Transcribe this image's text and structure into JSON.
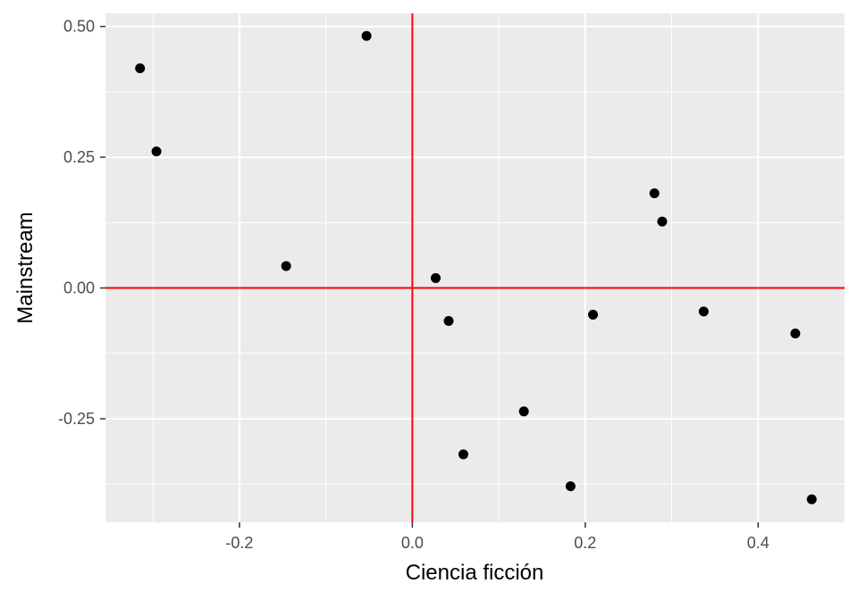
{
  "chart_data": {
    "type": "scatter",
    "title": "",
    "xlabel": "Ciencia ficción",
    "ylabel": "Mainstream",
    "xlim": [
      -0.355,
      0.5
    ],
    "ylim": [
      -0.448,
      0.525
    ],
    "x_ticks": [
      -0.2,
      0.0,
      0.2,
      0.4
    ],
    "x_tick_labels": [
      "-0.2",
      "0.0",
      "0.2",
      "0.4"
    ],
    "y_ticks": [
      -0.25,
      0.0,
      0.25,
      0.5
    ],
    "y_tick_labels": [
      "-0.25",
      "0.00",
      "0.25",
      "0.50"
    ],
    "x_minor": [
      -0.3,
      -0.1,
      0.1,
      0.3
    ],
    "y_minor": [
      -0.375,
      -0.125,
      0.125,
      0.375
    ],
    "grid": true,
    "reference_lines": {
      "x": 0,
      "y": 0,
      "color": "#ff0000"
    },
    "colors": {
      "panel": "#ebebeb",
      "grid": "#ffffff",
      "point": "#000000",
      "reference": "#ff0000"
    },
    "points": [
      {
        "x": -0.315,
        "y": 0.42
      },
      {
        "x": -0.296,
        "y": 0.261
      },
      {
        "x": -0.146,
        "y": 0.042
      },
      {
        "x": -0.053,
        "y": 0.482
      },
      {
        "x": 0.027,
        "y": 0.019
      },
      {
        "x": 0.042,
        "y": -0.063
      },
      {
        "x": 0.059,
        "y": -0.318
      },
      {
        "x": 0.129,
        "y": -0.236
      },
      {
        "x": 0.183,
        "y": -0.379
      },
      {
        "x": 0.209,
        "y": -0.051
      },
      {
        "x": 0.28,
        "y": 0.181
      },
      {
        "x": 0.289,
        "y": 0.127
      },
      {
        "x": 0.337,
        "y": -0.045
      },
      {
        "x": 0.443,
        "y": -0.087
      },
      {
        "x": 0.462,
        "y": -0.404
      }
    ]
  }
}
